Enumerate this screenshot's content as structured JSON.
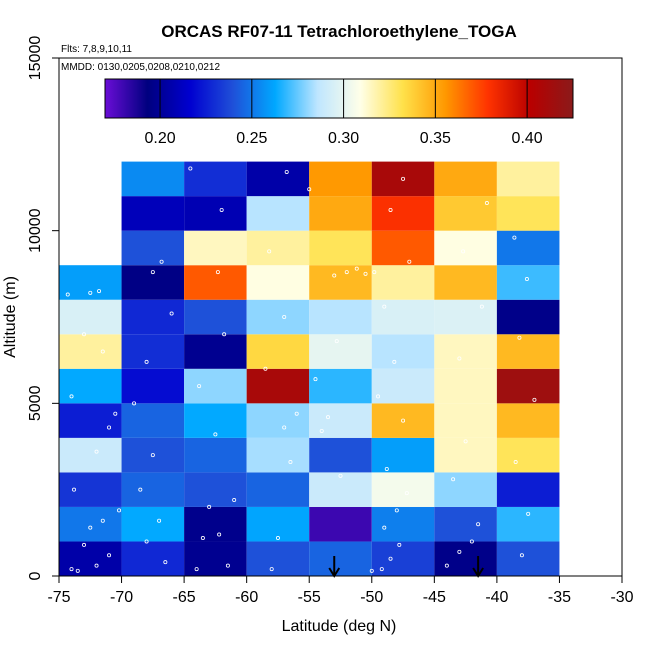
{
  "chart_data": {
    "type": "heatmap",
    "title": "ORCAS RF07-11 Tetrachloroethylene_TOGA",
    "subtitle_flights": "Flts: 7,8,9,10,11",
    "subtitle_dates": "MMDD: 0130,0205,0208,0210,0212",
    "xlabel": "Latitude (deg N)",
    "ylabel": "Altitude (m)",
    "xlim": [
      -75,
      -30
    ],
    "ylim": [
      0,
      15000
    ],
    "x_ticks": [
      -75,
      -70,
      -65,
      -60,
      -55,
      -50,
      -45,
      -40,
      -35,
      -30
    ],
    "y_ticks": [
      0,
      5000,
      10000,
      15000
    ],
    "colorbar": {
      "range": [
        0.17,
        0.425
      ],
      "ticks": [
        0.2,
        0.25,
        0.3,
        0.35,
        0.4
      ],
      "tick_labels": [
        "0.20",
        "0.25",
        "0.30",
        "0.35",
        "0.40"
      ],
      "stops": [
        "#6a0dd6",
        "#00007f",
        "#0000d0",
        "#1f4fd8",
        "#00a8ff",
        "#bfe6ff",
        "#ffffe8",
        "#ffe14a",
        "#ff9800",
        "#ff3300",
        "#b80000",
        "#8b1a1a"
      ]
    },
    "bin_width_lat": 5,
    "bin_height_alt": 1000,
    "columns_lat_start": [
      -75,
      -70,
      -65,
      -60,
      -55,
      -50,
      -45,
      -40
    ],
    "rows_alt_start": [
      0,
      1000,
      2000,
      3000,
      4000,
      5000,
      6000,
      7000,
      8000,
      9000,
      10000,
      11000
    ],
    "cells": [
      [
        0.205,
        0.228,
        0.198,
        0.24,
        0.245,
        0.235,
        0.196,
        0.24
      ],
      [
        0.25,
        0.263,
        0.197,
        0.262,
        0.18,
        0.252,
        0.24,
        0.268
      ],
      [
        0.232,
        0.245,
        0.24,
        0.245,
        0.29,
        0.305,
        0.28,
        0.225
      ],
      [
        0.29,
        0.24,
        0.245,
        0.283,
        0.24,
        0.26,
        0.315,
        0.33
      ],
      [
        0.225,
        0.245,
        0.263,
        0.28,
        0.29,
        0.345,
        0.315,
        0.345
      ],
      [
        0.263,
        0.22,
        0.28,
        0.41,
        0.268,
        0.29,
        0.315,
        0.415
      ],
      [
        0.32,
        0.23,
        0.198,
        0.335,
        0.3,
        0.285,
        0.315,
        0.345
      ],
      [
        0.295,
        0.228,
        0.24,
        0.28,
        0.285,
        0.295,
        0.296,
        0.196
      ],
      [
        0.26,
        0.195,
        0.37,
        0.31,
        0.345,
        0.32,
        0.345,
        0.27
      ],
      [
        null,
        0.24,
        0.315,
        0.32,
        0.33,
        0.37,
        0.31,
        0.25
      ],
      [
        null,
        0.21,
        0.208,
        0.285,
        0.35,
        0.38,
        0.34,
        0.33
      ],
      [
        null,
        0.255,
        0.23,
        0.205,
        0.355,
        0.41,
        0.35,
        0.32
      ]
    ],
    "flight_track_points": [
      [
        -73.5,
        150
      ],
      [
        -72,
        300
      ],
      [
        -71,
        600
      ],
      [
        -74,
        200
      ],
      [
        -73,
        900
      ],
      [
        -72.5,
        1400
      ],
      [
        -71.5,
        1600
      ],
      [
        -70.2,
        1900
      ],
      [
        -73.8,
        2500
      ],
      [
        -72,
        3600
      ],
      [
        -71,
        4300
      ],
      [
        -70.5,
        4700
      ],
      [
        -74,
        5200
      ],
      [
        -71.5,
        6500
      ],
      [
        -73,
        7000
      ],
      [
        -72.5,
        8200
      ],
      [
        -71.8,
        8250
      ],
      [
        -74.3,
        8150
      ],
      [
        -68,
        1000
      ],
      [
        -67,
        1600
      ],
      [
        -66.5,
        400
      ],
      [
        -68.5,
        2500
      ],
      [
        -67.5,
        3500
      ],
      [
        -69,
        5000
      ],
      [
        -68,
        6200
      ],
      [
        -66,
        7600
      ],
      [
        -67.5,
        8800
      ],
      [
        -66.8,
        9100
      ],
      [
        -64,
        200
      ],
      [
        -63.5,
        1100
      ],
      [
        -62.2,
        1200
      ],
      [
        -61.5,
        300
      ],
      [
        -63,
        2000
      ],
      [
        -61,
        2200
      ],
      [
        -62.5,
        4100
      ],
      [
        -63.8,
        5500
      ],
      [
        -61.8,
        7000
      ],
      [
        -62.3,
        8800
      ],
      [
        -64.5,
        11800
      ],
      [
        -62,
        10600
      ],
      [
        -58,
        200
      ],
      [
        -57.5,
        1100
      ],
      [
        -56.5,
        3300
      ],
      [
        -56,
        4700
      ],
      [
        -58.5,
        6000
      ],
      [
        -57,
        7500
      ],
      [
        -58.2,
        9400
      ],
      [
        -56.8,
        11700
      ],
      [
        -55,
        11200
      ],
      [
        -57,
        4300
      ],
      [
        -54,
        4200
      ],
      [
        -53.5,
        4600
      ],
      [
        -52.8,
        6800
      ],
      [
        -53,
        8700
      ],
      [
        -52,
        8800
      ],
      [
        -51.2,
        8900
      ],
      [
        -50.5,
        8750
      ],
      [
        -49.8,
        8800
      ],
      [
        -52.5,
        2900
      ],
      [
        -54.5,
        5700
      ],
      [
        -50,
        150
      ],
      [
        -49.2,
        200
      ],
      [
        -48.5,
        500
      ],
      [
        -47.8,
        900
      ],
      [
        -49,
        1400
      ],
      [
        -48,
        1900
      ],
      [
        -47.2,
        2400
      ],
      [
        -48.8,
        3100
      ],
      [
        -47.5,
        4500
      ],
      [
        -49.5,
        5200
      ],
      [
        -48.2,
        6200
      ],
      [
        -49,
        7800
      ],
      [
        -47,
        9100
      ],
      [
        -48.5,
        10600
      ],
      [
        -47.5,
        11500
      ],
      [
        -44,
        300
      ],
      [
        -43,
        700
      ],
      [
        -42,
        1000
      ],
      [
        -41.5,
        1500
      ],
      [
        -43.5,
        2800
      ],
      [
        -42.5,
        3900
      ],
      [
        -43,
        6300
      ],
      [
        -41.2,
        7800
      ],
      [
        -42.7,
        9400
      ],
      [
        -40.8,
        10800
      ],
      [
        -38,
        600
      ],
      [
        -37.5,
        1800
      ],
      [
        -38.5,
        3300
      ],
      [
        -37,
        5100
      ],
      [
        -38.2,
        6900
      ],
      [
        -37.6,
        8600
      ],
      [
        -38.6,
        9800
      ]
    ],
    "markers": {
      "symbol": "down-arrow",
      "latitudes": [
        -53,
        -41.5
      ]
    }
  }
}
